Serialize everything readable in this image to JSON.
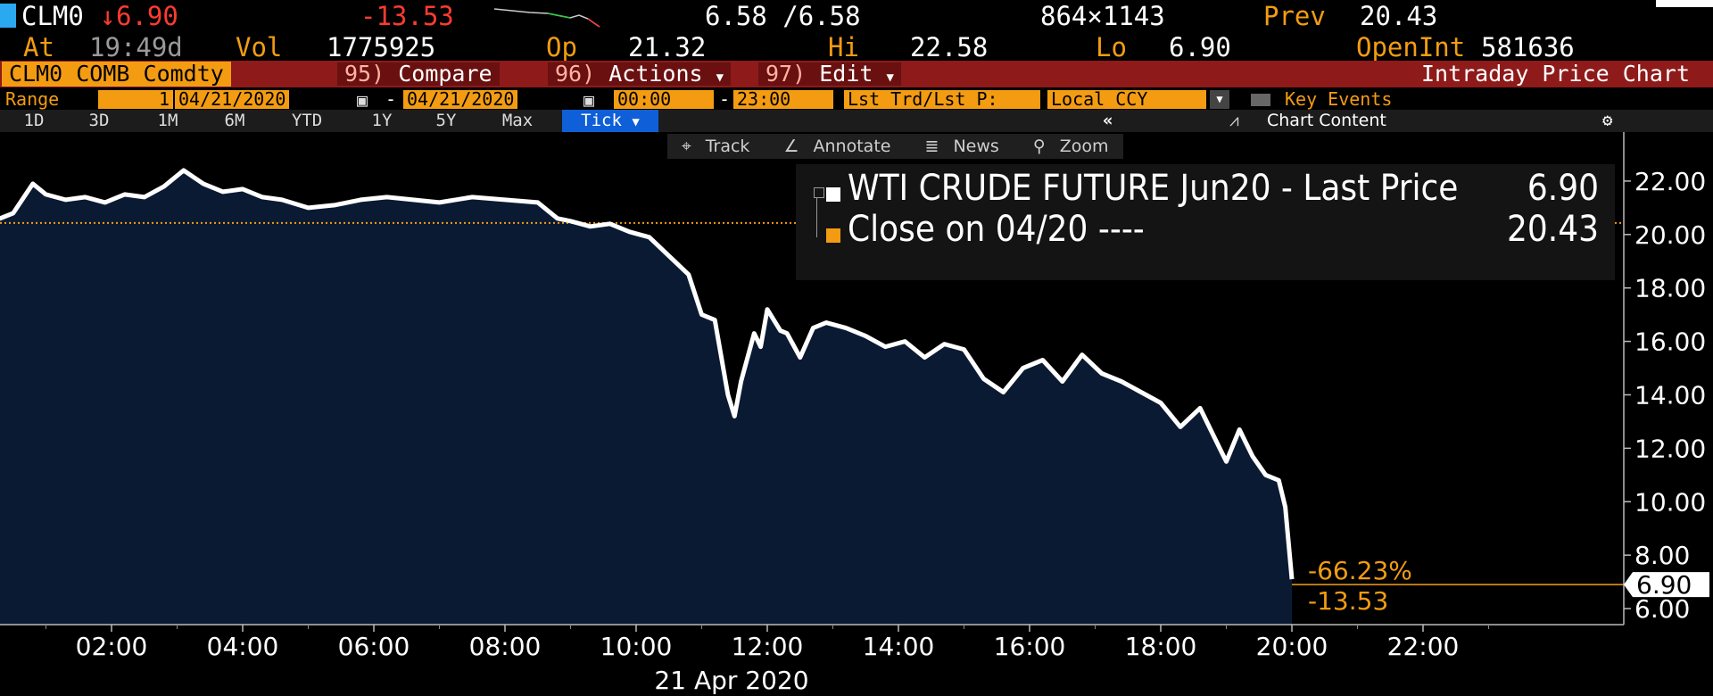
{
  "header": {
    "ticker": "CLM0",
    "last_arrow": "↓",
    "last": "6.90",
    "change": "-13.53",
    "bid_ask": "6.58 /6.58",
    "size": "864×1143",
    "prev_label": "Prev",
    "prev": "20.43",
    "at_label": "At",
    "time": "19:49d",
    "vol_label": "Vol",
    "vol": "1775925",
    "op_label": "Op",
    "op": "21.32",
    "hi_label": "Hi",
    "hi": "22.58",
    "lo_label": "Lo",
    "lo": "6.90",
    "oi_label": "OpenInt",
    "oi": "581636"
  },
  "menu": {
    "security": "CLM0 COMB Comdty",
    "compare_num": "95)",
    "compare": "Compare",
    "actions_num": "96)",
    "actions": "Actions",
    "edit_num": "97)",
    "edit": "Edit",
    "title": "Intraday Price Chart"
  },
  "range": {
    "label": "Range",
    "value": "1",
    "start_date": "04/21/2020",
    "dash": "-",
    "end_date": "04/21/2020",
    "start_time": "00:00",
    "end_time": "23:00",
    "price_type": "Lst Trd/Lst P:",
    "currency": "Local CCY",
    "key_events": "Key Events"
  },
  "periods": [
    "1D",
    "3D",
    "1M",
    "6M",
    "YTD",
    "1Y",
    "5Y",
    "Max",
    "Tick"
  ],
  "chart_content": "Chart Content",
  "tools": [
    "Track",
    "Annotate",
    "News",
    "Zoom"
  ],
  "legend": {
    "series1": "WTI CRUDE FUTURE Jun20 - Last Price",
    "series1_value": "6.90",
    "series2": "Close on 04/20 ----",
    "series2_value": "20.43"
  },
  "annotations": {
    "pct": "-66.23%",
    "abs": "-13.53",
    "last_tag": "6.90"
  },
  "colors": {
    "accent": "#f39c12",
    "fill": "#0b1a33",
    "line": "#ffffff",
    "close_line": "#f39c12"
  },
  "chart_data": {
    "type": "area",
    "title": "",
    "xlabel": "21 Apr 2020",
    "ylabel": "",
    "x_ticks": [
      "02:00",
      "04:00",
      "06:00",
      "08:00",
      "10:00",
      "12:00",
      "14:00",
      "16:00",
      "18:00",
      "20:00",
      "22:00"
    ],
    "y_ticks": [
      "6.00",
      "8.00",
      "10.00",
      "12.00",
      "14.00",
      "16.00",
      "18.00",
      "20.00",
      "22.00"
    ],
    "ylim": [
      5.4,
      23.5
    ],
    "xlim_hours": [
      0,
      24
    ],
    "reference_line": 20.43,
    "series": [
      {
        "name": "WTI CRUDE FUTURE Jun20 - Last Price",
        "x_hours": [
          0.0,
          0.3,
          0.5,
          0.8,
          1.0,
          1.3,
          1.6,
          1.9,
          2.2,
          2.5,
          2.8,
          3.1,
          3.4,
          3.7,
          4.0,
          4.3,
          4.6,
          5.0,
          5.4,
          5.8,
          6.2,
          6.6,
          7.0,
          7.5,
          8.0,
          8.5,
          8.8,
          9.0,
          9.3,
          9.6,
          9.9,
          10.2,
          10.5,
          10.8,
          11.0,
          11.2,
          11.4,
          11.5,
          11.6,
          11.8,
          11.9,
          12.0,
          12.2,
          12.3,
          12.5,
          12.7,
          12.9,
          13.2,
          13.5,
          13.8,
          14.1,
          14.4,
          14.7,
          15.0,
          15.3,
          15.6,
          15.9,
          16.2,
          16.5,
          16.8,
          17.1,
          17.4,
          17.7,
          18.0,
          18.3,
          18.6,
          18.9,
          19.0,
          19.2,
          19.4,
          19.6,
          19.8,
          19.9,
          20.0
        ],
        "values": [
          20.9,
          20.6,
          20.8,
          21.9,
          21.5,
          21.3,
          21.4,
          21.2,
          21.5,
          21.4,
          21.8,
          22.4,
          21.9,
          21.6,
          21.7,
          21.4,
          21.3,
          21.0,
          21.1,
          21.3,
          21.4,
          21.3,
          21.2,
          21.4,
          21.3,
          21.2,
          20.6,
          20.5,
          20.3,
          20.4,
          20.1,
          19.9,
          19.2,
          18.5,
          17.0,
          16.8,
          14.0,
          13.2,
          14.5,
          16.3,
          15.8,
          17.2,
          16.4,
          16.3,
          15.4,
          16.5,
          16.7,
          16.5,
          16.2,
          15.8,
          16.0,
          15.4,
          15.9,
          15.7,
          14.6,
          14.1,
          15.0,
          15.3,
          14.5,
          15.5,
          14.8,
          14.5,
          14.1,
          13.7,
          12.8,
          13.5,
          12.0,
          11.5,
          12.7,
          11.7,
          11.0,
          10.8,
          9.8,
          7.1
        ]
      }
    ],
    "grid": false,
    "legend_position": "top-right"
  }
}
